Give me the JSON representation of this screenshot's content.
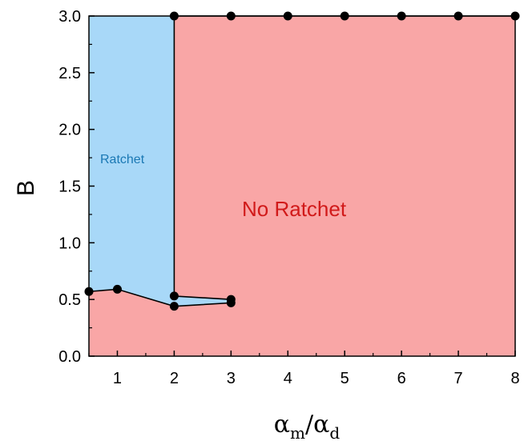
{
  "chart_data": {
    "type": "line",
    "title": "",
    "xlabel": "α_m/α_d",
    "xlabel_main": "α",
    "xlabel_sub_m": "m",
    "xlabel_sub_d": "d",
    "ylabel": "B",
    "xlim": [
      0.5,
      8
    ],
    "ylim": [
      0,
      3
    ],
    "xticks": [
      1,
      2,
      3,
      4,
      5,
      6,
      7,
      8
    ],
    "yticks": [
      "0.0",
      "0.5",
      "1.0",
      "1.5",
      "2.0",
      "2.5",
      "3.0"
    ],
    "grid": false,
    "regions": [
      {
        "name": "Ratchet",
        "color": "#a8d8f8"
      },
      {
        "name": "No Ratchet",
        "color": "#f9a6a6"
      }
    ],
    "series": [
      {
        "x": [
          0.5,
          1,
          2
        ],
        "values": [
          0.57,
          0.59,
          0.44
        ]
      },
      {
        "x": [
          2,
          3,
          3,
          2
        ],
        "values": [
          0.44,
          0.47,
          0.5,
          0.53
        ]
      },
      {
        "x": [
          2,
          2
        ],
        "values": [
          0.53,
          3.0
        ]
      },
      {
        "x": [
          2,
          3,
          4,
          5,
          6,
          7,
          8
        ],
        "values": [
          3.0,
          3.0,
          3.0,
          3.0,
          3.0,
          3.0,
          3.0
        ]
      }
    ],
    "line_color": "#000000",
    "marker_color": "#000000"
  }
}
